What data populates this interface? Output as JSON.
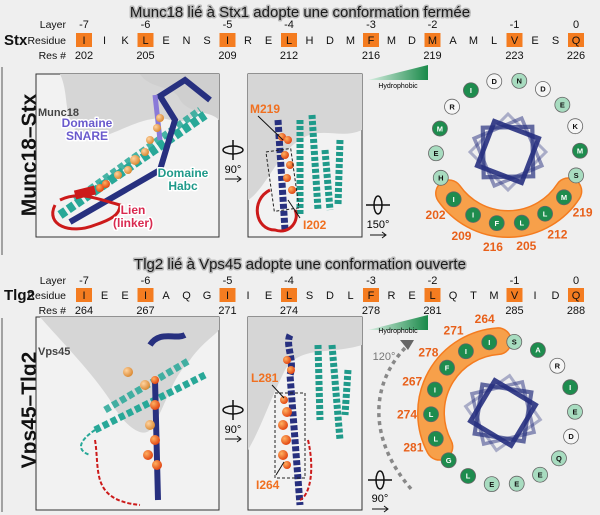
{
  "colors": {
    "highlight": "#f47c20",
    "band": "#f7a04a",
    "helix_navy": "#27307f",
    "habc_teal": "#28a898",
    "linker_red": "#cc1a1a",
    "hydrophobic": "#1e8c4e",
    "polar": "#a8dcc0",
    "charged": "#f6f6f6"
  },
  "row_labels": {
    "layer": "Layer",
    "residue": "Residue",
    "resnum": "Res #"
  },
  "hydrophobic_label": "Hydrophobic",
  "sections": [
    {
      "title": "Munc18 lié à Stx1 adopte une conformation fermée",
      "protein": "Stx",
      "complex_label": "Munc18–Stx",
      "residues": [
        "I",
        "I",
        "K",
        "L",
        "E",
        "N",
        "S",
        "I",
        "R",
        "E",
        "L",
        "H",
        "D",
        "M",
        "F",
        "M",
        "D",
        "M",
        "A",
        "M",
        "L",
        "V",
        "E",
        "S",
        "Q"
      ],
      "layers": [
        {
          "index": 0,
          "layer": "-7",
          "resnum": "202"
        },
        {
          "index": 3,
          "layer": "-6",
          "resnum": "205"
        },
        {
          "index": 7,
          "layer": "-5",
          "resnum": "209"
        },
        {
          "index": 10,
          "layer": "-4",
          "resnum": "212"
        },
        {
          "index": 14,
          "layer": "-3",
          "resnum": "216"
        },
        {
          "index": 17,
          "layer": "-2",
          "resnum": "219"
        },
        {
          "index": 21,
          "layer": "-1",
          "resnum": "223"
        },
        {
          "index": 24,
          "layer": "0",
          "resnum": "226"
        }
      ],
      "panel1": {
        "partner": "Munc18",
        "snare_1": "Domaine",
        "snare_2": "SNARE",
        "habc_1": "Domaine",
        "habc_2": "Habc",
        "linker_1": "Lien",
        "linker_2": "(linker)"
      },
      "panel2": {
        "top_residue": "M219",
        "bottom_residue": "I202"
      },
      "rotation_1": "90°",
      "rotation_2": "150°",
      "wheel": [
        {
          "aa": "I",
          "type": "hydrophobic"
        },
        {
          "aa": "D",
          "type": "charged"
        },
        {
          "aa": "N",
          "type": "polar"
        },
        {
          "aa": "D",
          "type": "charged"
        },
        {
          "aa": "E",
          "type": "polar"
        },
        {
          "aa": "K",
          "type": "charged"
        },
        {
          "aa": "M",
          "type": "hydrophobic"
        },
        {
          "aa": "S",
          "type": "polar"
        },
        {
          "aa": "M",
          "type": "hydrophobic",
          "resnum": "219"
        },
        {
          "aa": "L",
          "type": "hydrophobic",
          "resnum": "212"
        },
        {
          "aa": "L",
          "type": "hydrophobic",
          "resnum": "205"
        },
        {
          "aa": "F",
          "type": "hydrophobic",
          "resnum": "216"
        },
        {
          "aa": "I",
          "type": "hydrophobic",
          "resnum": "209"
        },
        {
          "aa": "I",
          "type": "hydrophobic",
          "resnum": "202"
        },
        {
          "aa": "H",
          "type": "polar"
        },
        {
          "aa": "E",
          "type": "polar"
        },
        {
          "aa": "M",
          "type": "hydrophobic"
        },
        {
          "aa": "R",
          "type": "charged"
        }
      ]
    },
    {
      "title": "Tlg2 lié à Vps45 adopte une conformation ouverte",
      "protein": "Tlg2",
      "complex_label": "Vps45–Tlg2",
      "residues": [
        "I",
        "E",
        "E",
        "I",
        "A",
        "Q",
        "G",
        "I",
        "I",
        "E",
        "L",
        "S",
        "D",
        "L",
        "F",
        "R",
        "E",
        "L",
        "Q",
        "T",
        "M",
        "V",
        "I",
        "D",
        "Q"
      ],
      "layers": [
        {
          "index": 0,
          "layer": "-7",
          "resnum": "264"
        },
        {
          "index": 3,
          "layer": "-6",
          "resnum": "267"
        },
        {
          "index": 7,
          "layer": "-5",
          "resnum": "271"
        },
        {
          "index": 10,
          "layer": "-4",
          "resnum": "274"
        },
        {
          "index": 14,
          "layer": "-3",
          "resnum": "278"
        },
        {
          "index": 17,
          "layer": "-2",
          "resnum": "281"
        },
        {
          "index": 21,
          "layer": "-1",
          "resnum": "285"
        },
        {
          "index": 24,
          "layer": "0",
          "resnum": "288"
        }
      ],
      "panel1": {
        "partner": "Vps45"
      },
      "panel2": {
        "top_residue": "L281",
        "bottom_residue": "I264"
      },
      "rotation_1": "90°",
      "rotation_2": "90°",
      "wheel_rotation": "120°",
      "wheel": [
        {
          "aa": "I",
          "type": "hydrophobic",
          "resnum": "264"
        },
        {
          "aa": "S",
          "type": "polar"
        },
        {
          "aa": "A",
          "type": "hydrophobic"
        },
        {
          "aa": "R",
          "type": "charged"
        },
        {
          "aa": "I",
          "type": "hydrophobic"
        },
        {
          "aa": "E",
          "type": "polar"
        },
        {
          "aa": "D",
          "type": "charged"
        },
        {
          "aa": "Q",
          "type": "polar"
        },
        {
          "aa": "E",
          "type": "polar"
        },
        {
          "aa": "E",
          "type": "polar"
        },
        {
          "aa": "E",
          "type": "polar"
        },
        {
          "aa": "L",
          "type": "hydrophobic"
        },
        {
          "aa": "G",
          "type": "hydrophobic"
        },
        {
          "aa": "L",
          "type": "hydrophobic",
          "resnum": "281"
        },
        {
          "aa": "L",
          "type": "hydrophobic",
          "resnum": "274"
        },
        {
          "aa": "I",
          "type": "hydrophobic",
          "resnum": "267"
        },
        {
          "aa": "F",
          "type": "hydrophobic",
          "resnum": "278"
        },
        {
          "aa": "I",
          "type": "hydrophobic",
          "resnum": "271"
        }
      ]
    }
  ]
}
